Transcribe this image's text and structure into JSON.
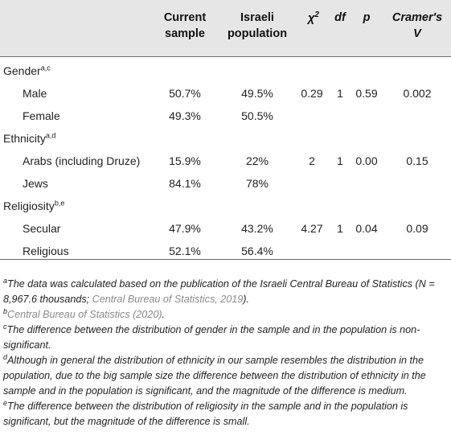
{
  "columns": {
    "current_sample": [
      "Current",
      "sample"
    ],
    "israeli_population": [
      "Israeli",
      "population"
    ],
    "chi_base": "χ",
    "chi_sup": "2",
    "df": "df",
    "p": "p",
    "cramers": [
      "Cramer's",
      "V"
    ]
  },
  "groups": [
    {
      "label": "Gender",
      "sup": "a,c",
      "rows": [
        {
          "label": "Male",
          "current": "50.7%",
          "israeli": "49.5%",
          "chi": "0.29",
          "df": "1",
          "p": "0.59",
          "v": "0.002"
        },
        {
          "label": "Female",
          "current": "49.3%",
          "israeli": "50.5%",
          "chi": "",
          "df": "",
          "p": "",
          "v": ""
        }
      ]
    },
    {
      "label": "Ethnicity",
      "sup": "a,d",
      "rows": [
        {
          "label": "Arabs (including Druze)",
          "current": "15.9%",
          "israeli": "22%",
          "chi": "2",
          "df": "1",
          "p": "0.00",
          "v": "0.15"
        },
        {
          "label": "Jews",
          "current": "84.1%",
          "israeli": "78%",
          "chi": "",
          "df": "",
          "p": "",
          "v": ""
        }
      ]
    },
    {
      "label": "Religiosity",
      "sup": "b,e",
      "rows": [
        {
          "label": "Secular",
          "current": "47.9%",
          "israeli": "43.2%",
          "chi": "4.27",
          "df": "1",
          "p": "0.04",
          "v": "0.09"
        },
        {
          "label": "Religious",
          "current": "52.1%",
          "israeli": "56.4%",
          "chi": "",
          "df": "",
          "p": "",
          "v": ""
        }
      ]
    }
  ],
  "footnotes": {
    "a": {
      "mark": "a",
      "text_1": "The data was calculated based on the publication of the Israeli Central Bureau of Statistics (N = 8,967.6 thousands; ",
      "ref": "Central Bureau of Statistics, 2019",
      "text_2": ")."
    },
    "b": {
      "mark": "b",
      "ref": "Central Bureau of Statistics (2020)",
      "text": "."
    },
    "c": {
      "mark": "c",
      "text": "The difference between the distribution of gender in the sample and in the population is non-significant."
    },
    "d": {
      "mark": "d",
      "text": "Although in general the distribution of ethnicity in our sample resembles the distribution in the population, due to the big sample size the difference between the distribution of ethnicity in the sample and in the population is significant, and the magnitude of the difference is medium."
    },
    "e": {
      "mark": "e",
      "text": "The difference between the distribution of religiosity in the sample and in the population is significant, but the magnitude of the difference is small."
    }
  }
}
